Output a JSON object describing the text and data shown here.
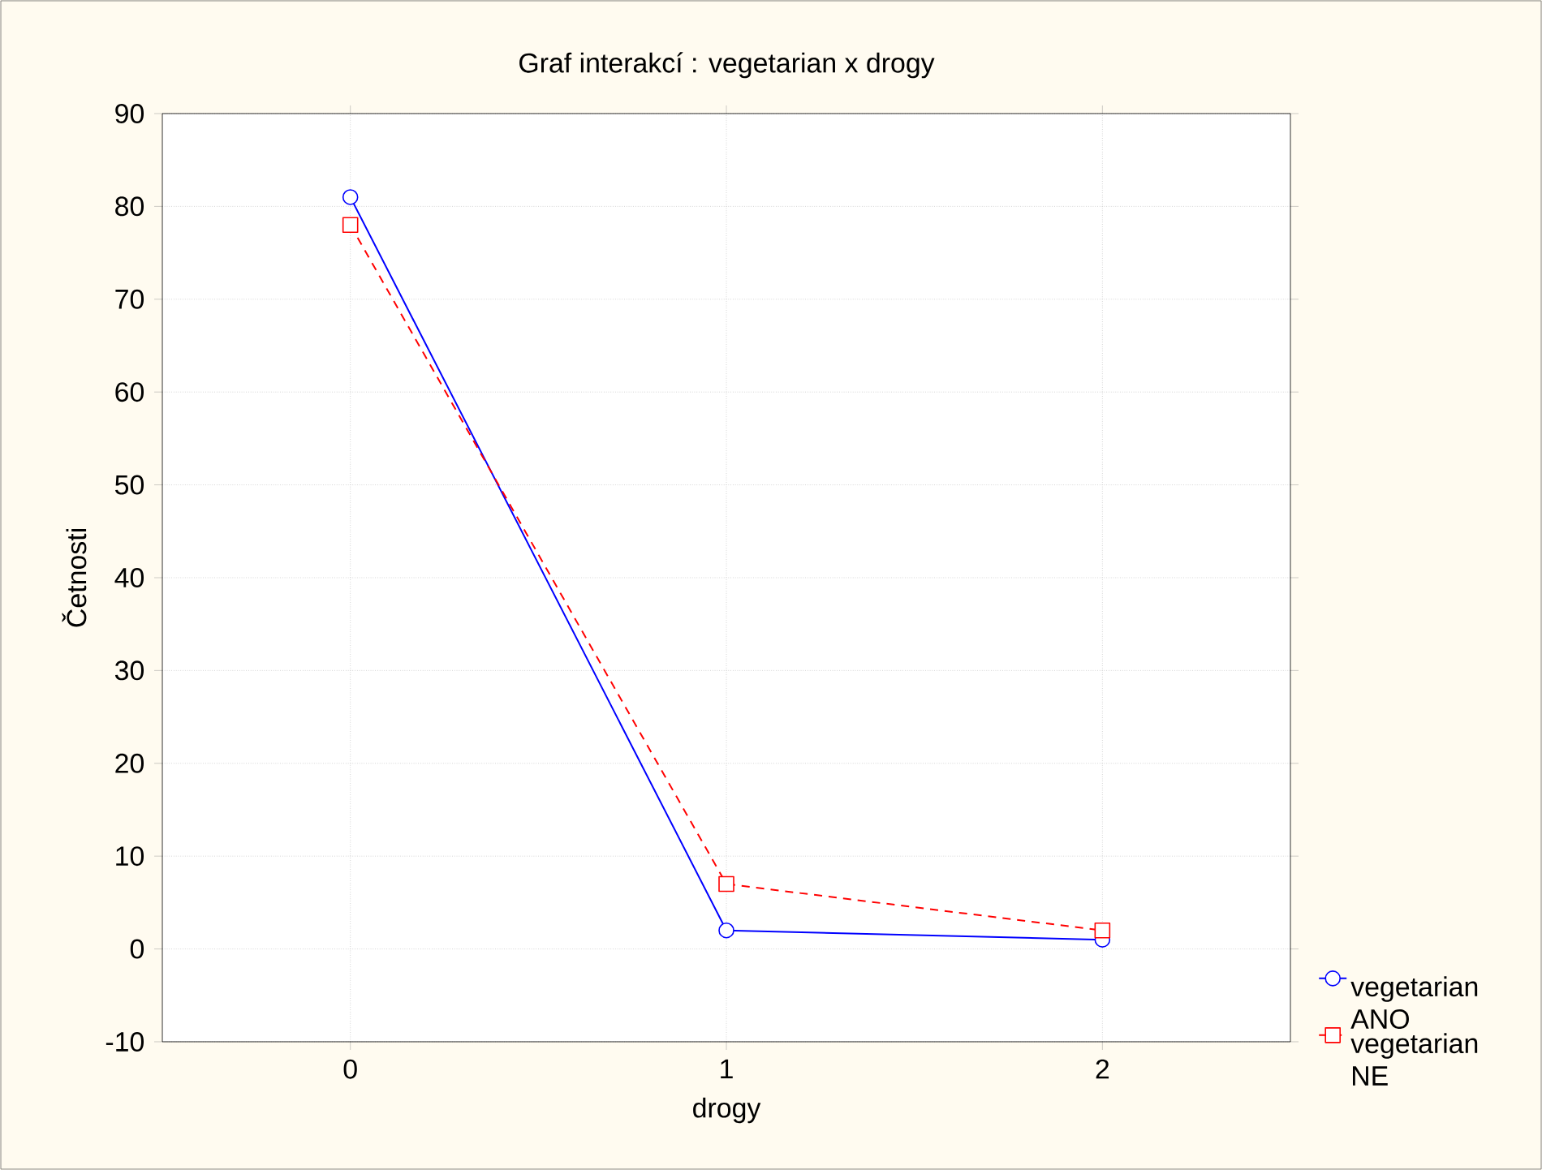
{
  "chart_data": {
    "type": "line",
    "title": "Graf interakcí : vegetarian x drogy",
    "xlabel": "drogy",
    "ylabel": "Četnosti",
    "categories": [
      "0",
      "1",
      "2"
    ],
    "series": [
      {
        "name": "vegetarian ANO",
        "color": "#0000ff",
        "values": [
          81,
          2,
          1
        ],
        "marker": "circle",
        "line_style": "solid"
      },
      {
        "name": "vegetarian NE",
        "color": "#ff0000",
        "values": [
          78,
          7,
          2
        ],
        "marker": "square",
        "line_style": "dashed"
      }
    ],
    "ylim": [
      -10,
      90
    ],
    "yticks": [
      -10,
      0,
      10,
      20,
      30,
      40,
      50,
      60,
      70,
      80,
      90
    ],
    "grid": true,
    "legend": "bottom right"
  }
}
